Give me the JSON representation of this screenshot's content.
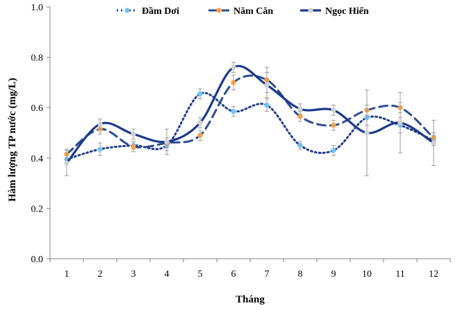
{
  "chart_data": {
    "type": "line",
    "title": "",
    "xlabel": "Tháng",
    "ylabel": "Hàm lượng  TP nước (mg/L)",
    "categories": [
      "1",
      "2",
      "3",
      "4",
      "5",
      "6",
      "7",
      "8",
      "9",
      "10",
      "11",
      "12"
    ],
    "ylim": [
      0,
      1.0
    ],
    "yticks": [
      "0.0",
      "0.2",
      "0.4",
      "0.6",
      "0.8",
      "1.0"
    ],
    "grid": false,
    "smooth": true,
    "legend_position": "top",
    "series": [
      {
        "name": "Đầm Dơi",
        "style": "dotted",
        "line_color": "#203D8C",
        "marker_color": "#6FC3F2",
        "values": [
          0.395,
          0.435,
          0.45,
          0.45,
          0.655,
          0.585,
          0.61,
          0.45,
          0.43,
          0.56,
          0.53,
          0.47
        ],
        "errors": [
          0.02,
          0.025,
          0.015,
          0.02,
          0.02,
          0.02,
          0.025,
          0.015,
          0.02,
          0.03,
          0.03,
          0.02
        ]
      },
      {
        "name": "Năm Căn",
        "style": "dashed",
        "line_color": "#2B4C8F",
        "marker_color": "#F5A04A",
        "values": [
          0.415,
          0.515,
          0.445,
          0.46,
          0.49,
          0.7,
          0.71,
          0.565,
          0.53,
          0.59,
          0.6,
          0.48
        ],
        "errors": [
          0.02,
          0.02,
          0.02,
          0.02,
          0.02,
          0.03,
          0.05,
          0.02,
          0.02,
          0.02,
          0.02,
          0.02
        ]
      },
      {
        "name": "Ngọc Hiển",
        "style": "solid",
        "line_color": "#1A3A8A",
        "marker_color": "#D0D0D0",
        "values": [
          0.38,
          0.535,
          0.495,
          0.465,
          0.54,
          0.76,
          0.69,
          0.595,
          0.59,
          0.5,
          0.54,
          0.46
        ],
        "errors": [
          0.05,
          0.02,
          0.02,
          0.05,
          0.02,
          0.02,
          0.05,
          0.02,
          0.02,
          0.17,
          0.12,
          0.09
        ]
      }
    ]
  }
}
